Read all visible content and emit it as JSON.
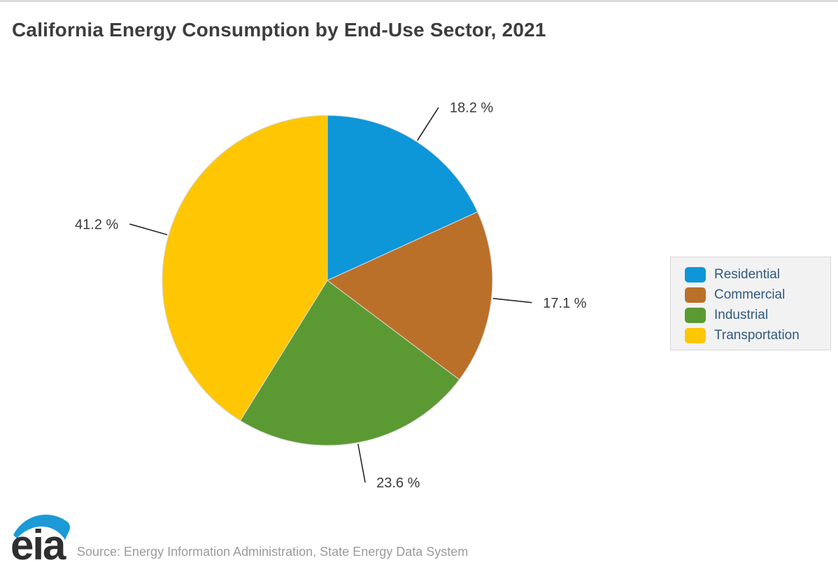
{
  "page": {
    "title": "California Energy Consumption by End-Use Sector, 2021",
    "source_text": "Source: Energy Information Administration, State Energy Data System",
    "logo_text": "eia"
  },
  "chart_data": {
    "type": "pie",
    "title": "California Energy Consumption by End-Use Sector, 2021",
    "categories": [
      "Residential",
      "Commercial",
      "Industrial",
      "Transportation"
    ],
    "values": [
      18.2,
      17.1,
      23.6,
      41.2
    ],
    "labels": [
      "18.2 %",
      "17.1 %",
      "23.6 %",
      "41.2 %"
    ],
    "colors": [
      "#0d96d8",
      "#ba7029",
      "#5b9a32",
      "#ffc603"
    ],
    "start_angle": "12 o'clock",
    "direction": "clockwise",
    "legend_position": "right",
    "source": "Source: Energy Information Administration, State Energy Data System"
  },
  "legend": {
    "items": [
      {
        "label": "Residential",
        "color": "#0d96d8"
      },
      {
        "label": "Commercial",
        "color": "#ba7029"
      },
      {
        "label": "Industrial",
        "color": "#5b9a32"
      },
      {
        "label": "Transportation",
        "color": "#ffc603"
      }
    ]
  },
  "colors": {
    "title_text": "#3d3d3d",
    "label_text": "#3a3a3a",
    "leader_line": "#1a1a1a",
    "legend_text": "#31597f",
    "legend_bg": "#f2f2f2",
    "legend_border": "#d5d5d5",
    "source_text": "#9b9b9b",
    "top_border": "#dcdcdc",
    "slice_stroke": "#d9d9d9",
    "logo_blue": "#1b9ad7",
    "logo_dark": "#2f2f2f"
  }
}
